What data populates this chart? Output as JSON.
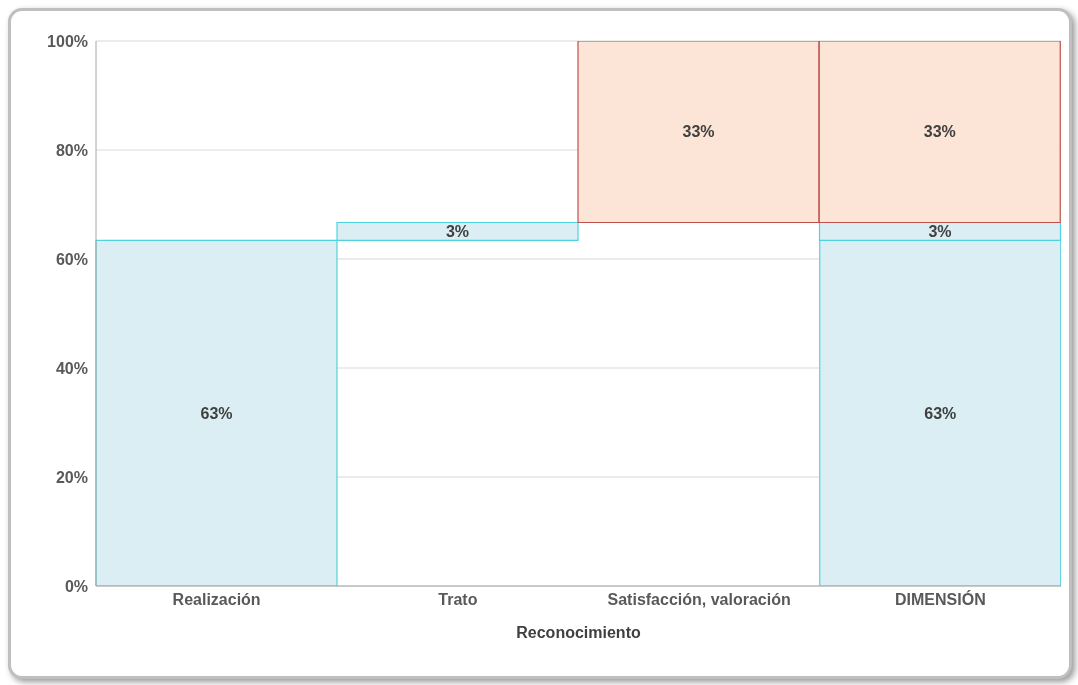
{
  "chart_data": {
    "type": "bar",
    "xlabel": "Reconocimiento",
    "categories": [
      "Realización",
      "Trato",
      "Satisfacción, valoración",
      "DIMENSIÓN"
    ],
    "stacked": true,
    "series": [
      {
        "color": "#daeef3",
        "values": [
          63.4,
          null,
          null,
          63.4
        ],
        "value_labels": [
          "63%",
          null,
          null,
          "63%"
        ]
      },
      {
        "color": "#daeef3",
        "values": [
          null,
          3.3,
          null,
          3.3
        ],
        "base": [
          null,
          63.4,
          null,
          63.4
        ],
        "value_labels": [
          null,
          "3%",
          null,
          "3%"
        ]
      },
      {
        "color": "#fce4d6",
        "values": [
          null,
          null,
          33.3,
          33.3
        ],
        "base": [
          null,
          null,
          66.7,
          66.7
        ],
        "value_labels": [
          null,
          null,
          "33%",
          "33%"
        ]
      }
    ],
    "ylim": [
      0,
      100
    ],
    "yticks": [
      {
        "value": 0,
        "label": "0%"
      },
      {
        "value": 20,
        "label": "20%"
      },
      {
        "value": 40,
        "label": "40%"
      },
      {
        "value": 60,
        "label": "60%"
      },
      {
        "value": 80,
        "label": "80%"
      },
      {
        "value": 100,
        "label": "100%"
      }
    ],
    "grid": "y"
  }
}
